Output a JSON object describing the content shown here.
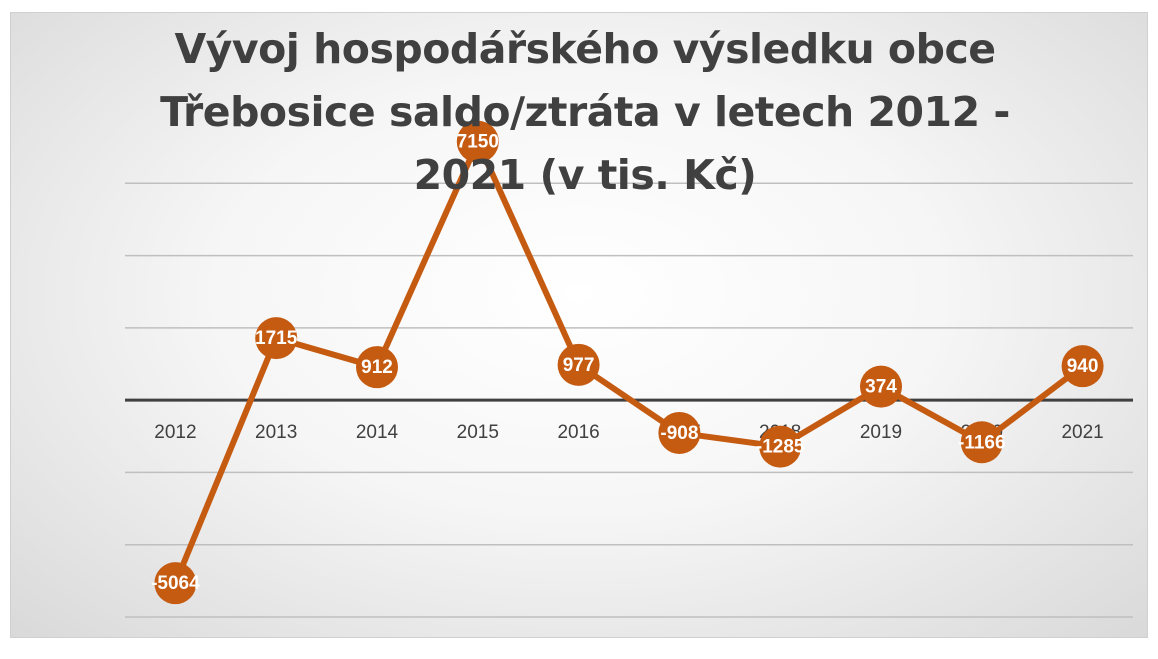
{
  "chart_data": {
    "type": "line",
    "title": "Vývoj hospodářského výsledku obce Třebosice saldo/ztráta v letech 2012 - 2021 (v tis. Kč)",
    "categories": [
      "2012",
      "2013",
      "2014",
      "2015",
      "2016",
      "2017",
      "2018",
      "2019",
      "2020",
      "2021"
    ],
    "series": [
      {
        "name": "saldo/ztráta",
        "color": "#c55a11",
        "values": [
          -5064,
          1715,
          912,
          7150,
          977,
          -908,
          -1285,
          374,
          -1166,
          940
        ]
      }
    ],
    "ylim": [
      -6000,
      8000
    ],
    "yticks": [
      -6000,
      -4000,
      -2000,
      0,
      2000,
      4000,
      6000
    ],
    "grid": true
  }
}
